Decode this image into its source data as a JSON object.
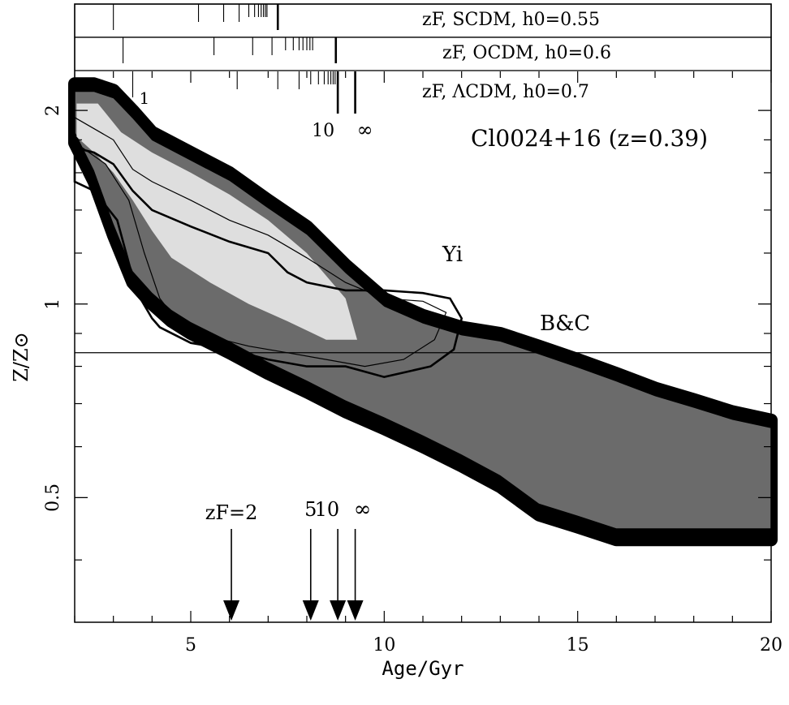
{
  "chart_data": {
    "type": "area",
    "title": "",
    "xlabel": "Age/Gyr",
    "ylabel": "Z/Z⊙",
    "xlim": [
      2,
      20
    ],
    "ylim": [
      0.32,
      2.3
    ],
    "yscale": "log",
    "grid": false,
    "x_ticks": [
      5,
      10,
      15,
      20
    ],
    "y_ticks": [
      0.5,
      1,
      2
    ],
    "annotation_cluster": "Cl0024+16 (z=0.39)",
    "annotation_yi": "Yi",
    "annotation_bc": "B&C",
    "solar_line_y": 0.84,
    "zf_arrows": {
      "labels": [
        "zF=2",
        "5",
        "10",
        "∞"
      ],
      "ages": [
        6.05,
        8.1,
        8.8,
        9.25
      ]
    },
    "zf_scales": [
      {
        "label": "zF, SCDM, h0=0.55",
        "minor_ages": [
          3.0,
          5.2,
          5.85,
          6.25,
          6.5,
          6.65,
          6.75,
          6.82,
          6.88,
          6.93,
          6.97
        ],
        "major_ages": [
          7.25
        ]
      },
      {
        "label": "zF, OCDM, h0=0.6",
        "minor_ages": [
          3.25,
          5.6,
          6.6,
          7.1,
          7.45,
          7.65,
          7.8,
          7.9,
          8.0,
          8.08,
          8.15
        ],
        "major_ages": [
          8.75
        ]
      },
      {
        "label": "zF, ΛCDM, h0=0.7",
        "minor_ages": [
          3.5,
          6.2,
          7.25,
          7.8,
          8.1,
          8.3,
          8.45,
          8.55,
          8.62,
          8.68,
          8.73
        ],
        "major_ages": [
          8.8,
          9.25
        ],
        "tick_labels": [
          "1",
          "10",
          "∞"
        ]
      }
    ],
    "series": [
      {
        "name": "B&C",
        "upper": [
          [
            2,
            2.2
          ],
          [
            2.5,
            2.2
          ],
          [
            3,
            2.15
          ],
          [
            3.5,
            2.0
          ],
          [
            4,
            1.85
          ],
          [
            5,
            1.72
          ],
          [
            6,
            1.6
          ],
          [
            7,
            1.45
          ],
          [
            8,
            1.32
          ],
          [
            9,
            1.15
          ],
          [
            10,
            1.02
          ],
          [
            11,
            0.96
          ],
          [
            12,
            0.92
          ],
          [
            13,
            0.9
          ],
          [
            14,
            0.86
          ],
          [
            15,
            0.82
          ],
          [
            16,
            0.78
          ],
          [
            17,
            0.74
          ],
          [
            18,
            0.71
          ],
          [
            19,
            0.68
          ],
          [
            20,
            0.66
          ]
        ],
        "lower": [
          [
            20,
            0.43
          ],
          [
            19,
            0.43
          ],
          [
            18,
            0.43
          ],
          [
            17,
            0.43
          ],
          [
            16,
            0.43
          ],
          [
            15,
            0.45
          ],
          [
            14,
            0.47
          ],
          [
            13,
            0.52
          ],
          [
            12,
            0.56
          ],
          [
            11,
            0.6
          ],
          [
            10,
            0.64
          ],
          [
            9,
            0.68
          ],
          [
            8,
            0.73
          ],
          [
            7,
            0.78
          ],
          [
            6,
            0.84
          ],
          [
            5,
            0.9
          ],
          [
            4.5,
            0.94
          ],
          [
            4,
            1.0
          ],
          [
            3.5,
            1.08
          ],
          [
            3,
            1.28
          ],
          [
            2.5,
            1.55
          ],
          [
            2,
            1.78
          ]
        ]
      },
      {
        "name": "Yi",
        "contour_outer": [
          [
            2,
            1.75
          ],
          [
            2.5,
            1.72
          ],
          [
            3,
            1.65
          ],
          [
            3.5,
            1.5
          ],
          [
            4,
            1.4
          ],
          [
            5,
            1.32
          ],
          [
            6,
            1.25
          ],
          [
            7,
            1.2
          ],
          [
            7.5,
            1.12
          ],
          [
            8,
            1.08
          ],
          [
            9,
            1.05
          ],
          [
            10,
            1.05
          ],
          [
            11,
            1.04
          ],
          [
            11.7,
            1.02
          ],
          [
            12,
            0.95
          ],
          [
            11.8,
            0.85
          ],
          [
            11.2,
            0.8
          ],
          [
            10,
            0.77
          ],
          [
            9,
            0.8
          ],
          [
            8,
            0.8
          ],
          [
            7,
            0.82
          ],
          [
            6,
            0.85
          ],
          [
            5,
            0.87
          ],
          [
            4.2,
            0.92
          ],
          [
            4,
            0.95
          ],
          [
            3.7,
            1.02
          ],
          [
            3.5,
            1.1
          ],
          [
            3.1,
            1.35
          ],
          [
            2.5,
            1.5
          ],
          [
            2,
            1.55
          ]
        ],
        "contour_inner": [
          [
            2,
            1.95
          ],
          [
            3,
            1.8
          ],
          [
            3.5,
            1.62
          ],
          [
            4,
            1.55
          ],
          [
            5,
            1.45
          ],
          [
            6,
            1.35
          ],
          [
            7,
            1.28
          ],
          [
            8,
            1.18
          ],
          [
            9,
            1.08
          ],
          [
            10,
            1.02
          ],
          [
            11,
            1.01
          ],
          [
            11.6,
            0.97
          ],
          [
            11.3,
            0.88
          ],
          [
            10.5,
            0.82
          ],
          [
            9.5,
            0.8
          ],
          [
            8.5,
            0.82
          ],
          [
            7.5,
            0.84
          ],
          [
            6.5,
            0.86
          ],
          [
            5.5,
            0.89
          ],
          [
            4.6,
            0.95
          ],
          [
            4.2,
            1.02
          ],
          [
            3.8,
            1.2
          ],
          [
            3.4,
            1.45
          ],
          [
            2.8,
            1.65
          ],
          [
            2.2,
            1.75
          ],
          [
            2,
            1.78
          ]
        ]
      }
    ]
  }
}
